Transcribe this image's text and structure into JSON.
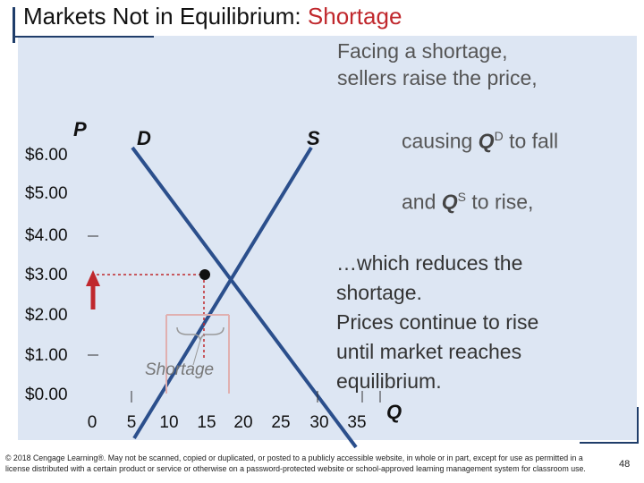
{
  "title": {
    "main": "Markets Not in Equilibrium:",
    "accent": "Shortage"
  },
  "caption": {
    "line1": "Facing a shortage,",
    "line2": "sellers raise the price,"
  },
  "axes": {
    "y_letter": "P",
    "x_letter": "Q"
  },
  "y_labels": [
    "$6.00",
    "$5.00",
    "$4.00",
    "$3.00",
    "$2.00",
    "$1.00",
    "$0.00"
  ],
  "x_labels": [
    "0",
    "5",
    "10",
    "15",
    "20",
    "25",
    "30",
    "35"
  ],
  "curves": {
    "demand": "D",
    "supply": "S"
  },
  "side_text": {
    "qd_pre": "causing ",
    "qd_q": "Q",
    "qd_sup": "D",
    "qd_post": " to fall",
    "qs_pre": "and ",
    "qs_q": "Q",
    "qs_sup": "S",
    "qs_post": " to rise,"
  },
  "after_text": [
    "…which reduces the",
    "shortage.",
    "Prices continue to rise",
    "until market reaches",
    "equilibrium."
  ],
  "shortage_label": "Shortage",
  "footer": "© 2018 Cengage Learning®. May not be scanned, copied or duplicated, or posted to a publicly accessible website, in whole or in part, except for use as permitted in a license distributed with a certain product or service or otherwise on a password-protected website or school-approved learning management system for classroom use.",
  "slide_number": "48",
  "colors": {
    "curve": "#2b4f8c",
    "arrow": "#c0282d",
    "guide": "#c0282d",
    "panel": "#dde6f3"
  }
}
